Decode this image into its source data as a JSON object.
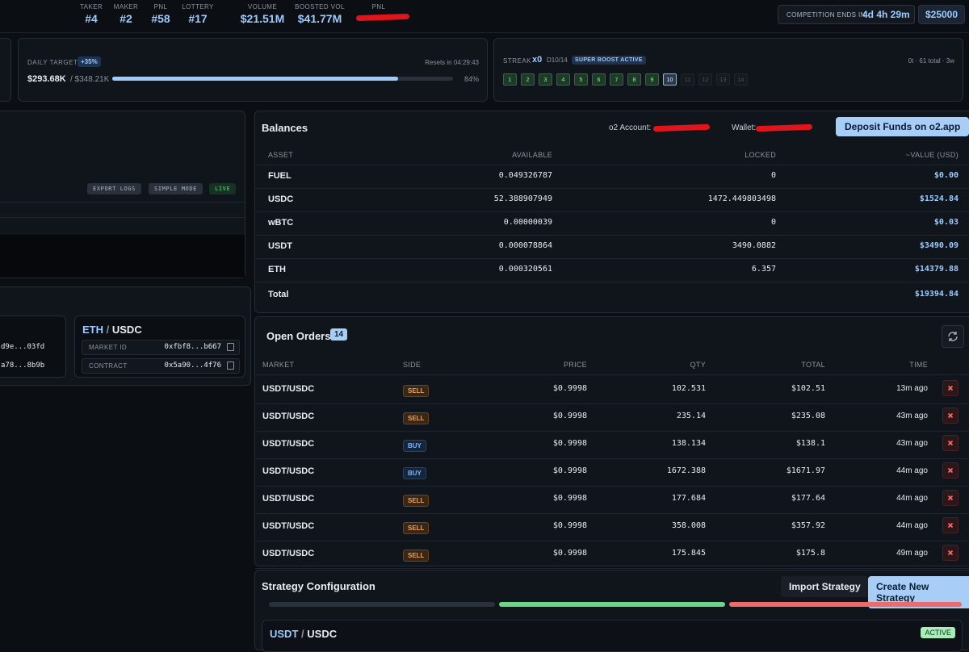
{
  "header": {
    "stats": [
      {
        "label": "TAKER",
        "value": "#4"
      },
      {
        "label": "MAKER",
        "value": "#2"
      },
      {
        "label": "PNL",
        "value": "#58"
      },
      {
        "label": "LOTTERY",
        "value": "#17"
      },
      {
        "label": "VOLUME",
        "value": "$21.51M"
      },
      {
        "label": "BOOSTED VOL",
        "value": "$41.77M"
      },
      {
        "label": "PNL"
      }
    ],
    "competition": {
      "label": "COMPETITION ENDS IN",
      "value": "4d 4h 29m"
    },
    "prize": "$25000"
  },
  "daily_target": {
    "label": "DAILY TARGET",
    "badge": "+35%",
    "resets": "Resets in 04:29:43",
    "current": "$293.68K",
    "target": "/ $348.21K",
    "progress": {
      "value": 84,
      "label": "84%"
    }
  },
  "streak": {
    "label": "STREAK",
    "value": "x0",
    "day": "D10/14",
    "badge": "SUPER BOOST ACTIVE",
    "meta": "0t · 61 total · 3w",
    "days": [
      {
        "label": "1",
        "state": "done"
      },
      {
        "label": "2",
        "state": "done"
      },
      {
        "label": "3",
        "state": "done"
      },
      {
        "label": "4",
        "state": "done"
      },
      {
        "label": "5",
        "state": "done"
      },
      {
        "label": "6",
        "state": "done"
      },
      {
        "label": "7",
        "state": "done"
      },
      {
        "label": "8",
        "state": "done"
      },
      {
        "label": "9",
        "state": "done"
      },
      {
        "label": "10",
        "state": "current"
      },
      {
        "label": "11",
        "state": "future"
      },
      {
        "label": "12",
        "state": "future"
      },
      {
        "label": "13",
        "state": "future"
      },
      {
        "label": "14",
        "state": "future"
      }
    ]
  },
  "logs": {
    "buttons": [
      "EXPORT LOGS",
      "SIMPLE MODE"
    ],
    "status": "LIVE"
  },
  "markets": {
    "partial_card": {
      "market_id": "d9e...03fd",
      "contract": "a78...8b9b"
    },
    "card": {
      "base": "ETH",
      "separator": "/",
      "quote": "USDC",
      "rows": [
        {
          "label": "MARKET ID",
          "value": "0xfbf8...b667"
        },
        {
          "label": "CONTRACT",
          "value": "0x5a90...4f76"
        }
      ]
    }
  },
  "balances": {
    "title": "Balances",
    "account_label": "o2 Account:",
    "wallet_label": "Wallet:",
    "deposit_button": "Deposit Funds on o2.app",
    "columns": [
      "ASSET",
      "AVAILABLE",
      "LOCKED",
      "~VALUE (USD)"
    ],
    "rows": [
      [
        "FUEL",
        "0.049326787",
        "0",
        "$0.00"
      ],
      [
        "USDC",
        "52.388907949",
        "1472.449803498",
        "$1524.84"
      ],
      [
        "wBTC",
        "0.00000039",
        "0",
        "$0.03"
      ],
      [
        "USDT",
        "0.000078864",
        "3490.0882",
        "$3490.09"
      ],
      [
        "ETH",
        "0.000320561",
        "6.357",
        "$14379.88"
      ]
    ],
    "total": {
      "label": "Total",
      "value": "$19394.84"
    }
  },
  "open_orders": {
    "title": "Open Orders",
    "count": "14",
    "columns": [
      "MARKET",
      "SIDE",
      "PRICE",
      "QTY",
      "TOTAL",
      "TIME"
    ],
    "rows": [
      [
        "USDT/USDC",
        "SELL",
        "$0.9998",
        "102.531",
        "$102.51",
        "13m ago"
      ],
      [
        "USDT/USDC",
        "SELL",
        "$0.9998",
        "235.14",
        "$235.08",
        "43m ago"
      ],
      [
        "USDT/USDC",
        "BUY",
        "$0.9998",
        "138.134",
        "$138.1",
        "43m ago"
      ],
      [
        "USDT/USDC",
        "BUY",
        "$0.9998",
        "1672.388",
        "$1671.97",
        "44m ago"
      ],
      [
        "USDT/USDC",
        "SELL",
        "$0.9998",
        "177.684",
        "$177.64",
        "44m ago"
      ],
      [
        "USDT/USDC",
        "SELL",
        "$0.9998",
        "358.008",
        "$357.92",
        "44m ago"
      ],
      [
        "USDT/USDC",
        "SELL",
        "$0.9998",
        "175.845",
        "$175.8",
        "49m ago"
      ]
    ]
  },
  "strategy": {
    "title": "Strategy Configuration",
    "import_button": "Import Strategy",
    "create_button": "Create New Strategy",
    "card": {
      "base": "USDT",
      "separator": "/",
      "quote": "USDC",
      "status": "ACTIVE"
    }
  }
}
